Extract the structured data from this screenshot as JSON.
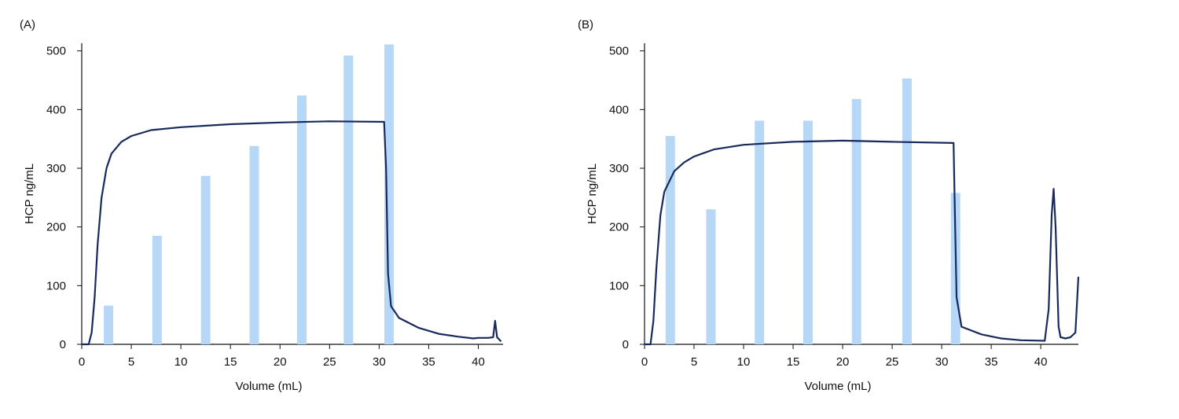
{
  "chart_data": [
    {
      "type": "combo",
      "title": "(A)",
      "x_label": "Volume (mL)",
      "y_label": "HCP ng/mL",
      "xlim": [
        0,
        42.5
      ],
      "ylim": [
        0,
        513
      ],
      "xticks": [
        0,
        5,
        10,
        15,
        20,
        25,
        30,
        35,
        40
      ],
      "yticks": [
        0,
        100,
        200,
        300,
        400,
        500
      ],
      "bars": {
        "color": "#b7d7f7",
        "width": 0.95,
        "x": [
          2.7,
          7.6,
          12.5,
          17.4,
          22.2,
          26.9,
          31.0
        ],
        "values": [
          66,
          185,
          287,
          338,
          424,
          492,
          511
        ]
      },
      "line": {
        "color": "#172a5c",
        "x": [
          0,
          0.7,
          1.0,
          1.3,
          1.6,
          2.0,
          2.5,
          3.0,
          4.0,
          5.0,
          7.0,
          10,
          15,
          20,
          25,
          30.5,
          30.7,
          30.9,
          31.2,
          32,
          34,
          36,
          38,
          39.5,
          40,
          41,
          41.5,
          41.7,
          41.9,
          42.3
        ],
        "values": [
          0,
          0,
          20,
          80,
          170,
          250,
          300,
          325,
          345,
          355,
          365,
          370,
          375,
          378,
          380,
          379,
          300,
          120,
          65,
          45,
          28,
          18,
          13,
          10,
          11,
          11,
          12,
          40,
          12,
          5
        ]
      }
    },
    {
      "type": "combo",
      "title": "(B)",
      "x_label": "Volume (mL)",
      "y_label": "HCP ng/mL",
      "xlim": [
        0,
        43.8
      ],
      "ylim": [
        0,
        513
      ],
      "xticks": [
        0,
        5,
        10,
        15,
        20,
        25,
        30,
        35,
        40
      ],
      "yticks": [
        0,
        100,
        200,
        300,
        400,
        500
      ],
      "bars": {
        "color": "#b7d7f7",
        "width": 0.95,
        "x": [
          2.6,
          6.7,
          11.6,
          16.5,
          21.4,
          26.5,
          31.4
        ],
        "values": [
          355,
          230,
          381,
          381,
          418,
          453,
          258
        ]
      },
      "line": {
        "color": "#172a5c",
        "x": [
          0,
          0.6,
          0.9,
          1.2,
          1.6,
          2.0,
          3.0,
          4.0,
          5.0,
          7.0,
          10,
          15,
          20,
          25,
          31.2,
          31.3,
          31.5,
          32,
          34,
          36,
          38,
          40.4,
          40.8,
          41.1,
          41.3,
          41.5,
          41.8,
          42.0,
          42.5,
          43.0,
          43.5,
          43.8
        ],
        "values": [
          0,
          0,
          40,
          130,
          220,
          260,
          295,
          310,
          320,
          332,
          340,
          345,
          347,
          345,
          343,
          250,
          80,
          30,
          17,
          10,
          7,
          6,
          60,
          220,
          265,
          200,
          30,
          12,
          10,
          12,
          20,
          115
        ]
      }
    }
  ]
}
